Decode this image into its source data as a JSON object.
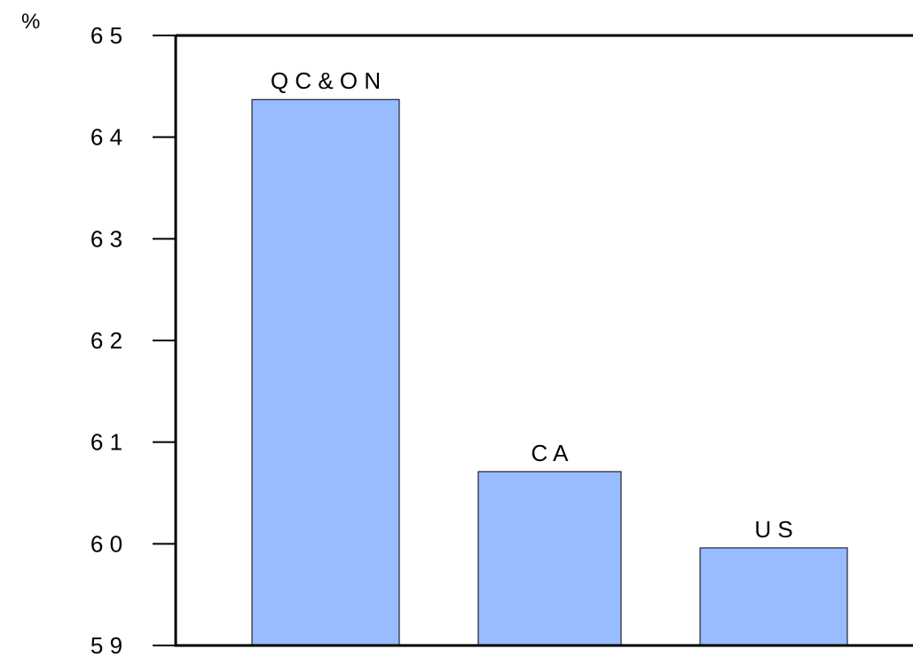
{
  "chart_data": {
    "type": "bar",
    "unit_label": "%",
    "categories": [
      "Q C & O N",
      "C A",
      "U S"
    ],
    "values": [
      64.37,
      60.71,
      59.96
    ],
    "ylim": [
      59,
      65
    ],
    "yticks": [
      59,
      60,
      61,
      62,
      63,
      64,
      65
    ],
    "ytick_labels": [
      "5 9",
      "6 0",
      "6 1",
      "6 2",
      "6 3",
      "6 4",
      "6 5"
    ],
    "labels_on_bars": true,
    "grid": false,
    "legend": "none",
    "colors": {
      "bar_fill": "#99bbff",
      "bar_stroke": "#000000",
      "axis": "#000000",
      "background": "#ffffff"
    }
  }
}
